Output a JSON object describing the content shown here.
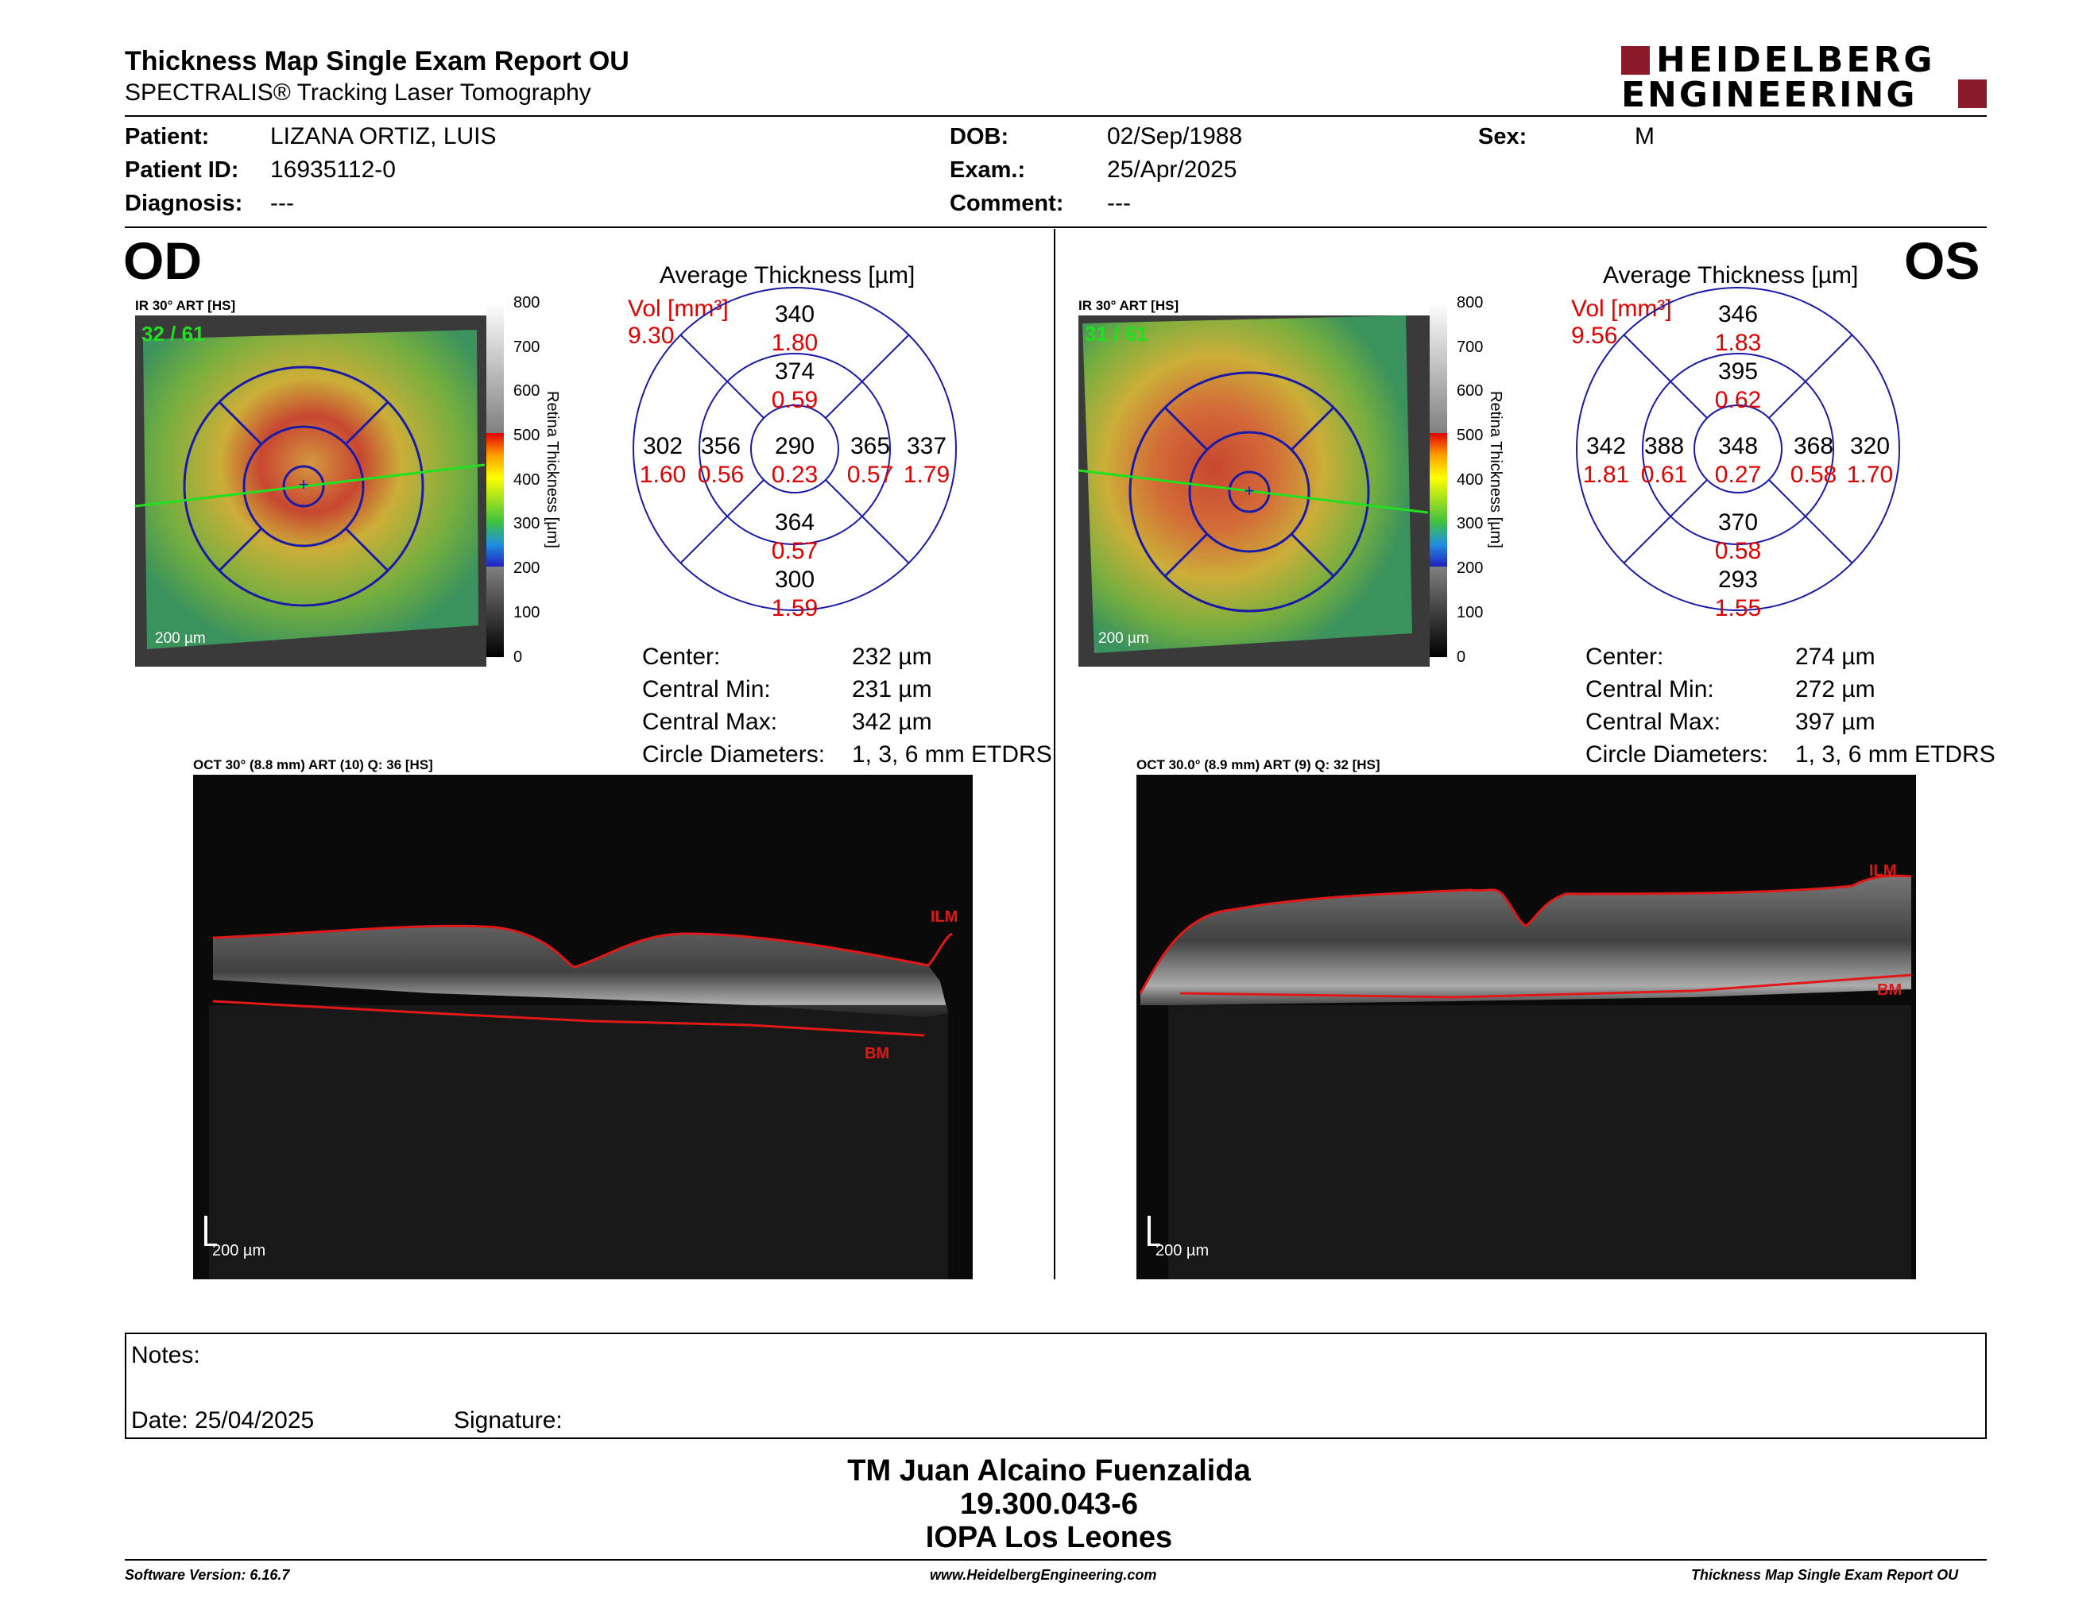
{
  "header": {
    "title": "Thickness Map Single Exam Report OU",
    "subtitle": "SPECTRALIS® Tracking Laser Tomography",
    "logo_line1": "HEIDELBERG",
    "logo_line2": "ENGINEERING"
  },
  "patient": {
    "patient_label": "Patient:",
    "patient_value": "LIZANA ORTIZ, LUIS",
    "id_label": "Patient ID:",
    "id_value": "16935112-0",
    "diagnosis_label": "Diagnosis:",
    "diagnosis_value": "---",
    "dob_label": "DOB:",
    "dob_value": "02/Sep/1988",
    "exam_label": "Exam.:",
    "exam_value": "25/Apr/2025",
    "comment_label": "Comment:",
    "comment_value": "---",
    "sex_label": "Sex:",
    "sex_value": "M"
  },
  "od": {
    "eye": "OD",
    "ir_caption": "IR 30° ART [HS]",
    "ir_frames": "32 / 61",
    "scale": "200 µm",
    "avg_title": "Average Thickness [µm]",
    "vol_label": "Vol [mm³]",
    "vol_value": "9.30",
    "sectors": {
      "outer_sup": [
        "340",
        "1.80"
      ],
      "inner_sup": [
        "374",
        "0.59"
      ],
      "outer_temp": [
        "302",
        "1.60"
      ],
      "inner_temp": [
        "356",
        "0.56"
      ],
      "center": [
        "290",
        "0.23"
      ],
      "inner_nasal": [
        "365",
        "0.57"
      ],
      "outer_nasal": [
        "337",
        "1.79"
      ],
      "inner_inf": [
        "364",
        "0.57"
      ],
      "outer_inf": [
        "300",
        "1.59"
      ]
    },
    "center_label": "Center:",
    "center_value": "232 µm",
    "cmin_label": "Central Min:",
    "cmin_value": "231 µm",
    "cmax_label": "Central Max:",
    "cmax_value": "342 µm",
    "circ_label": "Circle Diameters:",
    "circ_value": "1, 3, 6 mm ETDRS",
    "oct_caption": "OCT 30° (8.8 mm) ART (10) Q: 36 [HS]",
    "ilm": "ILM",
    "bm": "BM",
    "oct_scale": "200 µm"
  },
  "os": {
    "eye": "OS",
    "ir_caption": "IR 30° ART [HS]",
    "ir_frames": "31 / 61",
    "scale": "200 µm",
    "avg_title": "Average Thickness [µm]",
    "vol_label": "Vol [mm³]",
    "vol_value": "9.56",
    "sectors": {
      "outer_sup": [
        "346",
        "1.83"
      ],
      "inner_sup": [
        "395",
        "0.62"
      ],
      "outer_temp": [
        "342",
        "1.81"
      ],
      "inner_temp": [
        "388",
        "0.61"
      ],
      "center": [
        "348",
        "0.27"
      ],
      "inner_nasal": [
        "368",
        "0.58"
      ],
      "outer_nasal": [
        "320",
        "1.70"
      ],
      "inner_inf": [
        "370",
        "0.58"
      ],
      "outer_inf": [
        "293",
        "1.55"
      ]
    },
    "center_label": "Center:",
    "center_value": "274 µm",
    "cmin_label": "Central Min:",
    "cmin_value": "272 µm",
    "cmax_label": "Central Max:",
    "cmax_value": "397 µm",
    "circ_label": "Circle Diameters:",
    "circ_value": "1, 3, 6 mm ETDRS",
    "oct_caption": "OCT 30.0° (8.9 mm) ART (9) Q: 32 [HS]",
    "ilm": "ILM",
    "bm": "BM",
    "oct_scale": "200 µm"
  },
  "colorbar": {
    "ticks": [
      "800",
      "700",
      "600",
      "500",
      "400",
      "300",
      "200",
      "100",
      "0"
    ],
    "title": "Retina Thickness [µm]"
  },
  "notes": {
    "notes_label": "Notes:",
    "date_label": "Date: 25/04/2025",
    "signature_label": "Signature:"
  },
  "signature_block": {
    "name": "TM Juan Alcaino Fuenzalida",
    "rut": "19.300.043-6",
    "clinic": "IOPA Los Leones"
  },
  "footer": {
    "version": "Software Version: 6.16.7",
    "website": "www.HeidelbergEngineering.com",
    "report": "Thickness Map Single Exam Report OU"
  },
  "colors": {
    "accent_red": "#8b1a2b",
    "volume_red": "#e00000",
    "grid_blue": "#1a1aa8",
    "layer_red": "#d41a1a"
  }
}
